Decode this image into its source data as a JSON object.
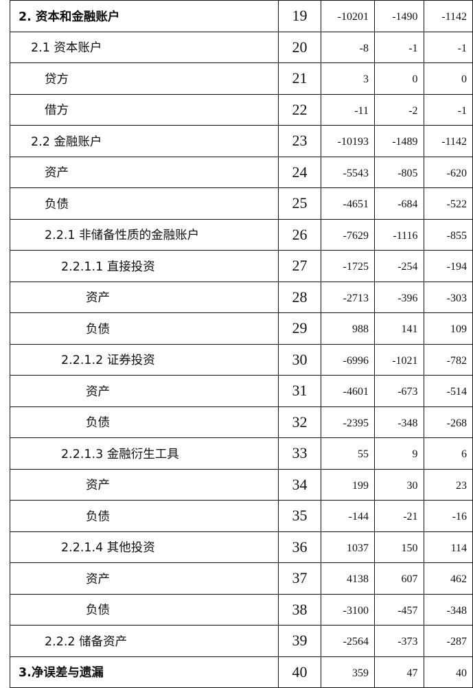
{
  "rows": [
    {
      "label": "2. 资本和金融账户",
      "level": 0,
      "bold": true,
      "no": "19",
      "v": [
        "-10201",
        "-1490",
        "-1142"
      ]
    },
    {
      "label": "2.1 资本账户",
      "level": 1,
      "bold": false,
      "no": "20",
      "v": [
        "-8",
        "-1",
        "-1"
      ]
    },
    {
      "label": "贷方",
      "level": 2,
      "bold": false,
      "no": "21",
      "v": [
        "3",
        "0",
        "0"
      ]
    },
    {
      "label": "借方",
      "level": 2,
      "bold": false,
      "no": "22",
      "v": [
        "-11",
        "-2",
        "-1"
      ]
    },
    {
      "label": "2.2 金融账户",
      "level": 1,
      "bold": false,
      "no": "23",
      "v": [
        "-10193",
        "-1489",
        "-1142"
      ]
    },
    {
      "label": "资产",
      "level": 2,
      "bold": false,
      "no": "24",
      "v": [
        "-5543",
        "-805",
        "-620"
      ]
    },
    {
      "label": "负债",
      "level": 2,
      "bold": false,
      "no": "25",
      "v": [
        "-4651",
        "-684",
        "-522"
      ]
    },
    {
      "label": "2.2.1 非储备性质的金融账户",
      "level": 2,
      "bold": false,
      "no": "26",
      "v": [
        "-7629",
        "-1116",
        "-855"
      ]
    },
    {
      "label": "2.2.1.1 直接投资",
      "level": 3,
      "bold": false,
      "no": "27",
      "v": [
        "-1725",
        "-254",
        "-194"
      ]
    },
    {
      "label": "资产",
      "level": 4,
      "bold": false,
      "no": "28",
      "v": [
        "-2713",
        "-396",
        "-303"
      ]
    },
    {
      "label": "负债",
      "level": 4,
      "bold": false,
      "no": "29",
      "v": [
        "988",
        "141",
        "109"
      ]
    },
    {
      "label": "2.2.1.2 证券投资",
      "level": 3,
      "bold": false,
      "no": "30",
      "v": [
        "-6996",
        "-1021",
        "-782"
      ]
    },
    {
      "label": "资产",
      "level": 4,
      "bold": false,
      "no": "31",
      "v": [
        "-4601",
        "-673",
        "-514"
      ]
    },
    {
      "label": "负债",
      "level": 4,
      "bold": false,
      "no": "32",
      "v": [
        "-2395",
        "-348",
        "-268"
      ]
    },
    {
      "label": "2.2.1.3 金融衍生工具",
      "level": 3,
      "bold": false,
      "no": "33",
      "v": [
        "55",
        "9",
        "6"
      ]
    },
    {
      "label": "资产",
      "level": 4,
      "bold": false,
      "no": "34",
      "v": [
        "199",
        "30",
        "23"
      ]
    },
    {
      "label": "负债",
      "level": 4,
      "bold": false,
      "no": "35",
      "v": [
        "-144",
        "-21",
        "-16"
      ]
    },
    {
      "label": "2.2.1.4 其他投资",
      "level": 3,
      "bold": false,
      "no": "36",
      "v": [
        "1037",
        "150",
        "114"
      ]
    },
    {
      "label": "资产",
      "level": 4,
      "bold": false,
      "no": "37",
      "v": [
        "4138",
        "607",
        "462"
      ]
    },
    {
      "label": "负债",
      "level": 4,
      "bold": false,
      "no": "38",
      "v": [
        "-3100",
        "-457",
        "-348"
      ]
    },
    {
      "label": "2.2.2 储备资产",
      "level": 2,
      "bold": false,
      "no": "39",
      "v": [
        "-2564",
        "-373",
        "-287"
      ]
    },
    {
      "label": "3.净误差与遗漏",
      "level": 0,
      "bold": true,
      "no": "40",
      "v": [
        "359",
        "47",
        "40"
      ]
    }
  ]
}
